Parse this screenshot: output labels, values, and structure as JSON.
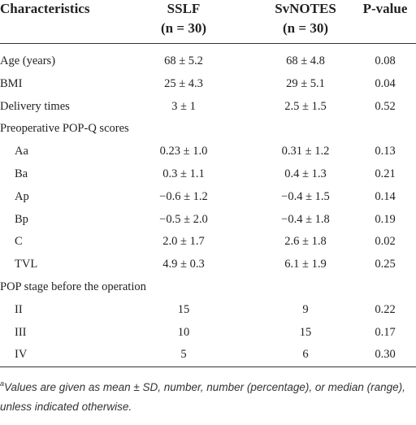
{
  "table": {
    "header": [
      "Characteristics",
      "SSLF",
      "(n = 30)",
      "SvNOTES",
      "(n = 30)",
      "P-value"
    ],
    "body": [
      [
        "Age (years)",
        "68 ± 5.2",
        "68 ± 4.8",
        "0.08"
      ],
      [
        "BMI",
        "25 ± 4.3",
        "29 ± 5.1",
        "0.04"
      ],
      [
        "Delivery times",
        "3 ± 1",
        "2.5 ± 1.5",
        "0.52"
      ],
      {
        "section": "Preoperative POP-Q scores",
        "rows": [
          [
            "Aa",
            "0.23 ± 1.0",
            "0.31 ± 1.2",
            "0.13"
          ],
          [
            "Ba",
            "0.3 ± 1.1",
            "0.4 ± 1.3",
            "0.21"
          ],
          [
            "Ap",
            "−0.6 ± 1.2",
            "−0.4 ± 1.5",
            "0.14"
          ],
          [
            "Bp",
            "−0.5 ± 2.0",
            "−0.4 ± 1.8",
            "0.19"
          ],
          [
            "C",
            "2.0 ± 1.7",
            "2.6 ± 1.8",
            "0.02"
          ],
          [
            "TVL",
            "4.9 ± 0.3",
            "6.1 ± 1.9",
            "0.25"
          ]
        ]
      },
      {
        "section": "POP stage before the operation",
        "rows": [
          [
            "II",
            "15",
            "9",
            "0.22"
          ],
          [
            "III",
            "10",
            "15",
            "0.17"
          ],
          [
            "IV",
            "5",
            "6",
            "0.30"
          ]
        ]
      }
    ],
    "footnote": {
      "marker": "a",
      "text": "Values are given as mean ± SD, number, number (percentage), or median (range), unless indicated otherwise."
    }
  }
}
